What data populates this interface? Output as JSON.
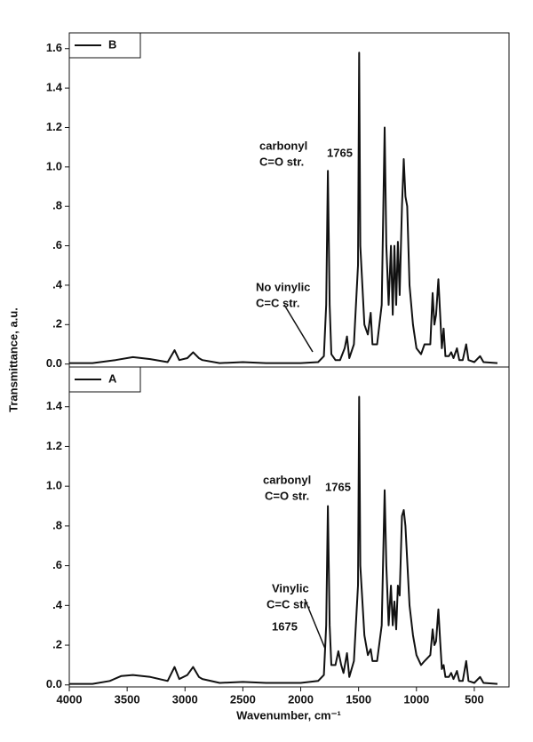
{
  "chart_data": [
    {
      "type": "line",
      "ylabel": "Transmittance, a.u.",
      "xlim": [
        4000,
        200
      ],
      "ylim": [
        -0.015,
        1.68
      ],
      "yticks": [
        {
          "value": 0,
          "label": "0.0"
        },
        {
          "value": 0.2,
          "label": ".2"
        },
        {
          "value": 0.4,
          "label": ".4"
        },
        {
          "value": 0.6,
          "label": ".6"
        },
        {
          "value": 0.8,
          "label": ".8"
        },
        {
          "value": 1.0,
          "label": "1.0"
        },
        1.2,
        1.4,
        1.6
      ],
      "legend": "upper left",
      "annotations": [
        "carbonyl",
        "C=O str.",
        "1765",
        "No vinylic",
        "C=C str."
      ],
      "series": [
        {
          "name": "B",
          "color": "#111111",
          "x": [
            4000,
            3800,
            3600,
            3450,
            3300,
            3150,
            3090,
            3050,
            2980,
            2930,
            2880,
            2850,
            2700,
            2500,
            2300,
            2000,
            1850,
            1800,
            1780,
            1765,
            1750,
            1735,
            1700,
            1660,
            1620,
            1600,
            1580,
            1540,
            1505,
            1495,
            1485,
            1450,
            1420,
            1395,
            1380,
            1340,
            1300,
            1275,
            1260,
            1240,
            1220,
            1205,
            1190,
            1175,
            1160,
            1145,
            1125,
            1110,
            1095,
            1080,
            1060,
            1030,
            1000,
            960,
            930,
            880,
            860,
            845,
            830,
            810,
            795,
            780,
            765,
            750,
            720,
            700,
            680,
            650,
            630,
            600,
            570,
            550,
            500,
            450,
            420,
            300
          ],
          "values": [
            0.005,
            0.005,
            0.02,
            0.035,
            0.025,
            0.01,
            0.07,
            0.02,
            0.03,
            0.06,
            0.03,
            0.02,
            0.005,
            0.01,
            0.005,
            0.005,
            0.01,
            0.04,
            0.3,
            0.98,
            0.3,
            0.05,
            0.02,
            0.02,
            0.08,
            0.14,
            0.03,
            0.1,
            0.5,
            1.58,
            0.6,
            0.2,
            0.15,
            0.26,
            0.1,
            0.1,
            0.3,
            1.2,
            0.6,
            0.3,
            0.6,
            0.25,
            0.6,
            0.3,
            0.62,
            0.35,
            0.8,
            1.04,
            0.85,
            0.8,
            0.4,
            0.2,
            0.08,
            0.05,
            0.1,
            0.1,
            0.36,
            0.2,
            0.25,
            0.43,
            0.25,
            0.08,
            0.18,
            0.04,
            0.04,
            0.06,
            0.03,
            0.08,
            0.02,
            0.02,
            0.1,
            0.02,
            0.01,
            0.04,
            0.01,
            0.005
          ]
        }
      ]
    },
    {
      "type": "line",
      "xlabel": "Wavenumber, cm⁻¹",
      "xlim": [
        4000,
        200
      ],
      "ylim": [
        -0.01,
        1.6
      ],
      "xticks": [
        4000,
        3500,
        3000,
        2500,
        2000,
        1500,
        1000,
        500
      ],
      "yticks": [
        {
          "value": 0,
          "label": "0.0"
        },
        {
          "value": 0.2,
          "label": ".2"
        },
        {
          "value": 0.4,
          "label": ".4"
        },
        {
          "value": 0.6,
          "label": ".6"
        },
        {
          "value": 0.8,
          "label": ".8"
        },
        {
          "value": 1.0,
          "label": "1.0"
        },
        1.2,
        1.4
      ],
      "legend": "upper left",
      "annotations": [
        "carbonyl",
        "C=O str.",
        "1765",
        "Vinylic",
        "C=C str.",
        "1675"
      ],
      "series": [
        {
          "name": "A",
          "color": "#111111",
          "x": [
            4000,
            3800,
            3650,
            3550,
            3450,
            3300,
            3150,
            3090,
            3050,
            2980,
            2930,
            2880,
            2850,
            2700,
            2500,
            2300,
            2000,
            1850,
            1800,
            1780,
            1765,
            1750,
            1735,
            1700,
            1675,
            1650,
            1630,
            1600,
            1580,
            1540,
            1505,
            1495,
            1485,
            1450,
            1420,
            1395,
            1380,
            1340,
            1300,
            1275,
            1260,
            1240,
            1220,
            1205,
            1190,
            1175,
            1160,
            1145,
            1125,
            1110,
            1095,
            1060,
            1030,
            1000,
            960,
            930,
            880,
            860,
            845,
            830,
            810,
            795,
            780,
            765,
            750,
            720,
            700,
            680,
            650,
            630,
            600,
            570,
            550,
            500,
            450,
            420,
            300
          ],
          "values": [
            0.005,
            0.005,
            0.02,
            0.045,
            0.05,
            0.04,
            0.02,
            0.09,
            0.03,
            0.05,
            0.09,
            0.04,
            0.03,
            0.01,
            0.015,
            0.01,
            0.01,
            0.02,
            0.05,
            0.3,
            0.9,
            0.3,
            0.1,
            0.1,
            0.17,
            0.1,
            0.06,
            0.16,
            0.04,
            0.12,
            0.5,
            1.45,
            0.6,
            0.25,
            0.15,
            0.18,
            0.12,
            0.12,
            0.3,
            0.98,
            0.6,
            0.3,
            0.5,
            0.3,
            0.42,
            0.28,
            0.5,
            0.45,
            0.85,
            0.88,
            0.8,
            0.4,
            0.25,
            0.15,
            0.1,
            0.12,
            0.15,
            0.28,
            0.2,
            0.22,
            0.38,
            0.22,
            0.08,
            0.1,
            0.04,
            0.04,
            0.06,
            0.03,
            0.07,
            0.02,
            0.02,
            0.12,
            0.02,
            0.01,
            0.04,
            0.01,
            0.005
          ]
        }
      ]
    }
  ]
}
